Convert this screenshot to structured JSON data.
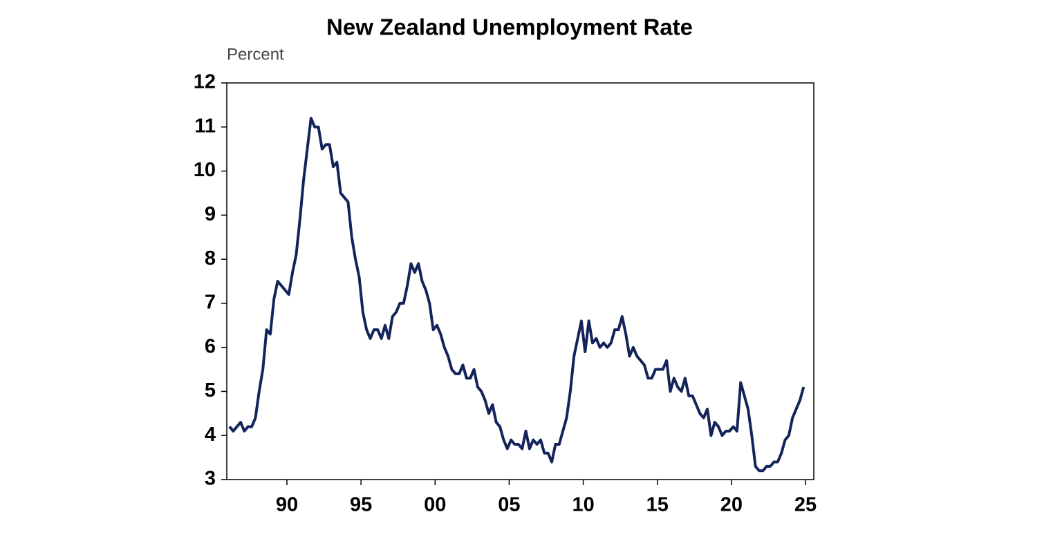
{
  "chart_data": {
    "type": "line",
    "title": "New Zealand Unemployment Rate",
    "y_label": "Percent",
    "color": "#14245a",
    "x": [
      1986.125,
      1986.375,
      1986.625,
      1986.875,
      1987.125,
      1987.375,
      1987.625,
      1987.875,
      1988.125,
      1988.375,
      1988.625,
      1988.875,
      1989.125,
      1989.375,
      1989.625,
      1989.875,
      1990.125,
      1990.375,
      1990.625,
      1990.875,
      1991.125,
      1991.375,
      1991.625,
      1991.875,
      1992.125,
      1992.375,
      1992.625,
      1992.875,
      1993.125,
      1993.375,
      1993.625,
      1993.875,
      1994.125,
      1994.375,
      1994.625,
      1994.875,
      1995.125,
      1995.375,
      1995.625,
      1995.875,
      1996.125,
      1996.375,
      1996.625,
      1996.875,
      1997.125,
      1997.375,
      1997.625,
      1997.875,
      1998.125,
      1998.375,
      1998.625,
      1998.875,
      1999.125,
      1999.375,
      1999.625,
      1999.875,
      2000.125,
      2000.375,
      2000.625,
      2000.875,
      2001.125,
      2001.375,
      2001.625,
      2001.875,
      2002.125,
      2002.375,
      2002.625,
      2002.875,
      2003.125,
      2003.375,
      2003.625,
      2003.875,
      2004.125,
      2004.375,
      2004.625,
      2004.875,
      2005.125,
      2005.375,
      2005.625,
      2005.875,
      2006.125,
      2006.375,
      2006.625,
      2006.875,
      2007.125,
      2007.375,
      2007.625,
      2007.875,
      2008.125,
      2008.375,
      2008.625,
      2008.875,
      2009.125,
      2009.375,
      2009.625,
      2009.875,
      2010.125,
      2010.375,
      2010.625,
      2010.875,
      2011.125,
      2011.375,
      2011.625,
      2011.875,
      2012.125,
      2012.375,
      2012.625,
      2012.875,
      2013.125,
      2013.375,
      2013.625,
      2013.875,
      2014.125,
      2014.375,
      2014.625,
      2014.875,
      2015.125,
      2015.375,
      2015.625,
      2015.875,
      2016.125,
      2016.375,
      2016.625,
      2016.875,
      2017.125,
      2017.375,
      2017.625,
      2017.875,
      2018.125,
      2018.375,
      2018.625,
      2018.875,
      2019.125,
      2019.375,
      2019.625,
      2019.875,
      2020.125,
      2020.375,
      2020.625,
      2020.875,
      2021.125,
      2021.375,
      2021.625,
      2021.875,
      2022.125,
      2022.375,
      2022.625,
      2022.875,
      2023.125,
      2023.375,
      2023.625,
      2023.875,
      2024.125,
      2024.375,
      2024.625,
      2024.875
    ],
    "values": [
      4.2,
      4.1,
      4.2,
      4.3,
      4.1,
      4.2,
      4.2,
      4.4,
      5.0,
      5.5,
      6.4,
      6.3,
      7.1,
      7.5,
      7.4,
      7.3,
      7.2,
      7.7,
      8.1,
      8.9,
      9.8,
      10.5,
      11.2,
      11.0,
      11.0,
      10.5,
      10.6,
      10.6,
      10.1,
      10.2,
      9.5,
      9.4,
      9.3,
      8.5,
      8.0,
      7.6,
      6.8,
      6.4,
      6.2,
      6.4,
      6.4,
      6.2,
      6.5,
      6.2,
      6.7,
      6.8,
      7.0,
      7.0,
      7.4,
      7.9,
      7.7,
      7.9,
      7.5,
      7.3,
      7.0,
      6.4,
      6.5,
      6.3,
      6.0,
      5.8,
      5.5,
      5.4,
      5.4,
      5.6,
      5.3,
      5.3,
      5.5,
      5.1,
      5.0,
      4.8,
      4.5,
      4.7,
      4.3,
      4.2,
      3.9,
      3.7,
      3.9,
      3.8,
      3.8,
      3.7,
      4.1,
      3.7,
      3.9,
      3.8,
      3.9,
      3.6,
      3.6,
      3.4,
      3.8,
      3.8,
      4.1,
      4.4,
      5.0,
      5.8,
      6.2,
      6.6,
      5.9,
      6.6,
      6.1,
      6.2,
      6.0,
      6.1,
      6.0,
      6.1,
      6.4,
      6.4,
      6.7,
      6.3,
      5.8,
      6.0,
      5.8,
      5.7,
      5.6,
      5.3,
      5.3,
      5.5,
      5.5,
      5.5,
      5.7,
      5.0,
      5.3,
      5.1,
      5.0,
      5.3,
      4.9,
      4.9,
      4.7,
      4.5,
      4.4,
      4.6,
      4.0,
      4.3,
      4.2,
      4.0,
      4.1,
      4.1,
      4.2,
      4.1,
      5.2,
      4.9,
      4.6,
      4.0,
      3.3,
      3.2,
      3.2,
      3.3,
      3.3,
      3.4,
      3.4,
      3.6,
      3.9,
      4.0,
      4.4,
      4.6,
      4.8,
      5.1
    ],
    "xlim": [
      1985.94,
      2025.56
    ],
    "xticks": [
      {
        "value": 1990,
        "label": "90"
      },
      {
        "value": 1995,
        "label": "95"
      },
      {
        "value": 2000,
        "label": "00"
      },
      {
        "value": 2005,
        "label": "05"
      },
      {
        "value": 2010,
        "label": "10"
      },
      {
        "value": 2015,
        "label": "15"
      },
      {
        "value": 2020,
        "label": "20"
      },
      {
        "value": 2025,
        "label": "25"
      }
    ],
    "ylim": [
      3,
      12
    ],
    "yticks": [
      3,
      4,
      5,
      6,
      7,
      8,
      9,
      10,
      11,
      12
    ],
    "grid": false
  }
}
